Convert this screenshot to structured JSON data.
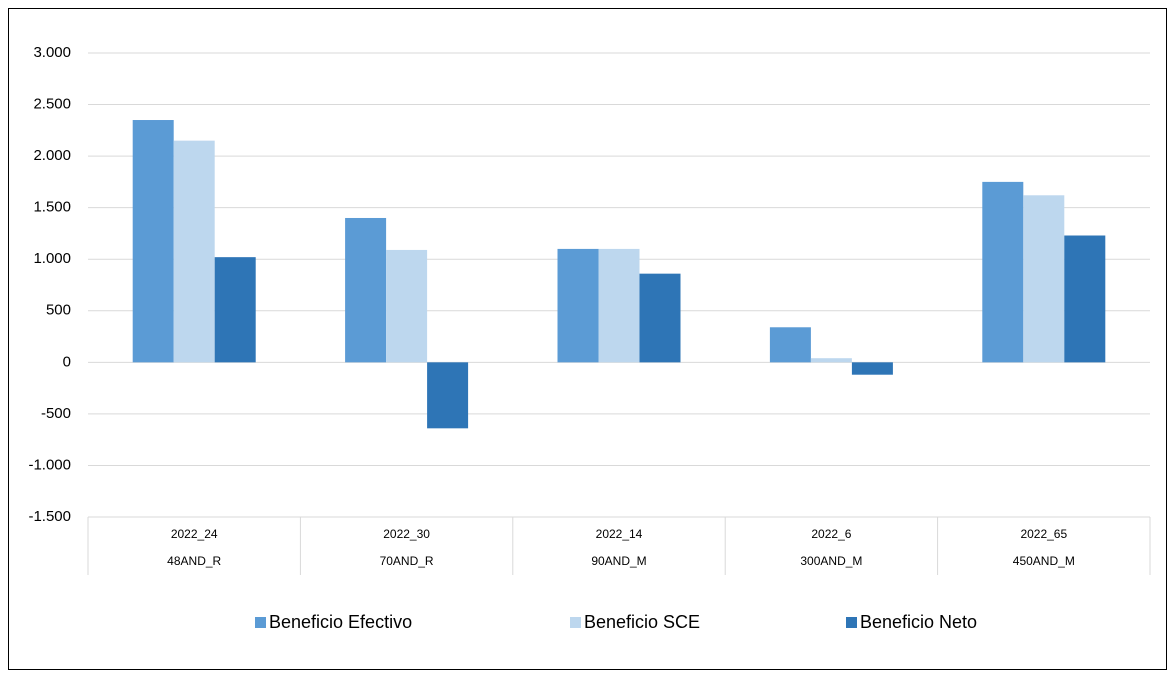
{
  "chart_data": {
    "type": "bar",
    "categories": [
      "2022_24",
      "2022_30",
      "2022_14",
      "2022_6",
      "2022_65"
    ],
    "subcategories": [
      "48AND_R",
      "70AND_R",
      "90AND_M",
      "300AND_M",
      "450AND_M"
    ],
    "series": [
      {
        "name": "Beneficio Efectivo",
        "color": "#5b9bd5",
        "values": [
          2350,
          1400,
          1100,
          340,
          1750
        ]
      },
      {
        "name": "Beneficio SCE",
        "color": "#bdd7ee",
        "values": [
          2150,
          1090,
          1100,
          40,
          1620
        ]
      },
      {
        "name": "Beneficio Neto",
        "color": "#2e75b6",
        "values": [
          1020,
          -640,
          860,
          -120,
          1230
        ]
      }
    ],
    "ylim": [
      -1500,
      3000
    ],
    "yticks": [
      {
        "value": -1500,
        "label": "-1.500"
      },
      {
        "value": -1000,
        "label": "-1.000"
      },
      -500,
      0,
      500,
      {
        "value": 1000,
        "label": "1.000"
      },
      {
        "value": 1500,
        "label": "1.500"
      },
      {
        "value": 2000,
        "label": "2.000"
      },
      {
        "value": 2500,
        "label": "2.500"
      },
      {
        "value": 3000,
        "label": "3.000"
      }
    ],
    "grid": true,
    "legend": "bottom"
  }
}
